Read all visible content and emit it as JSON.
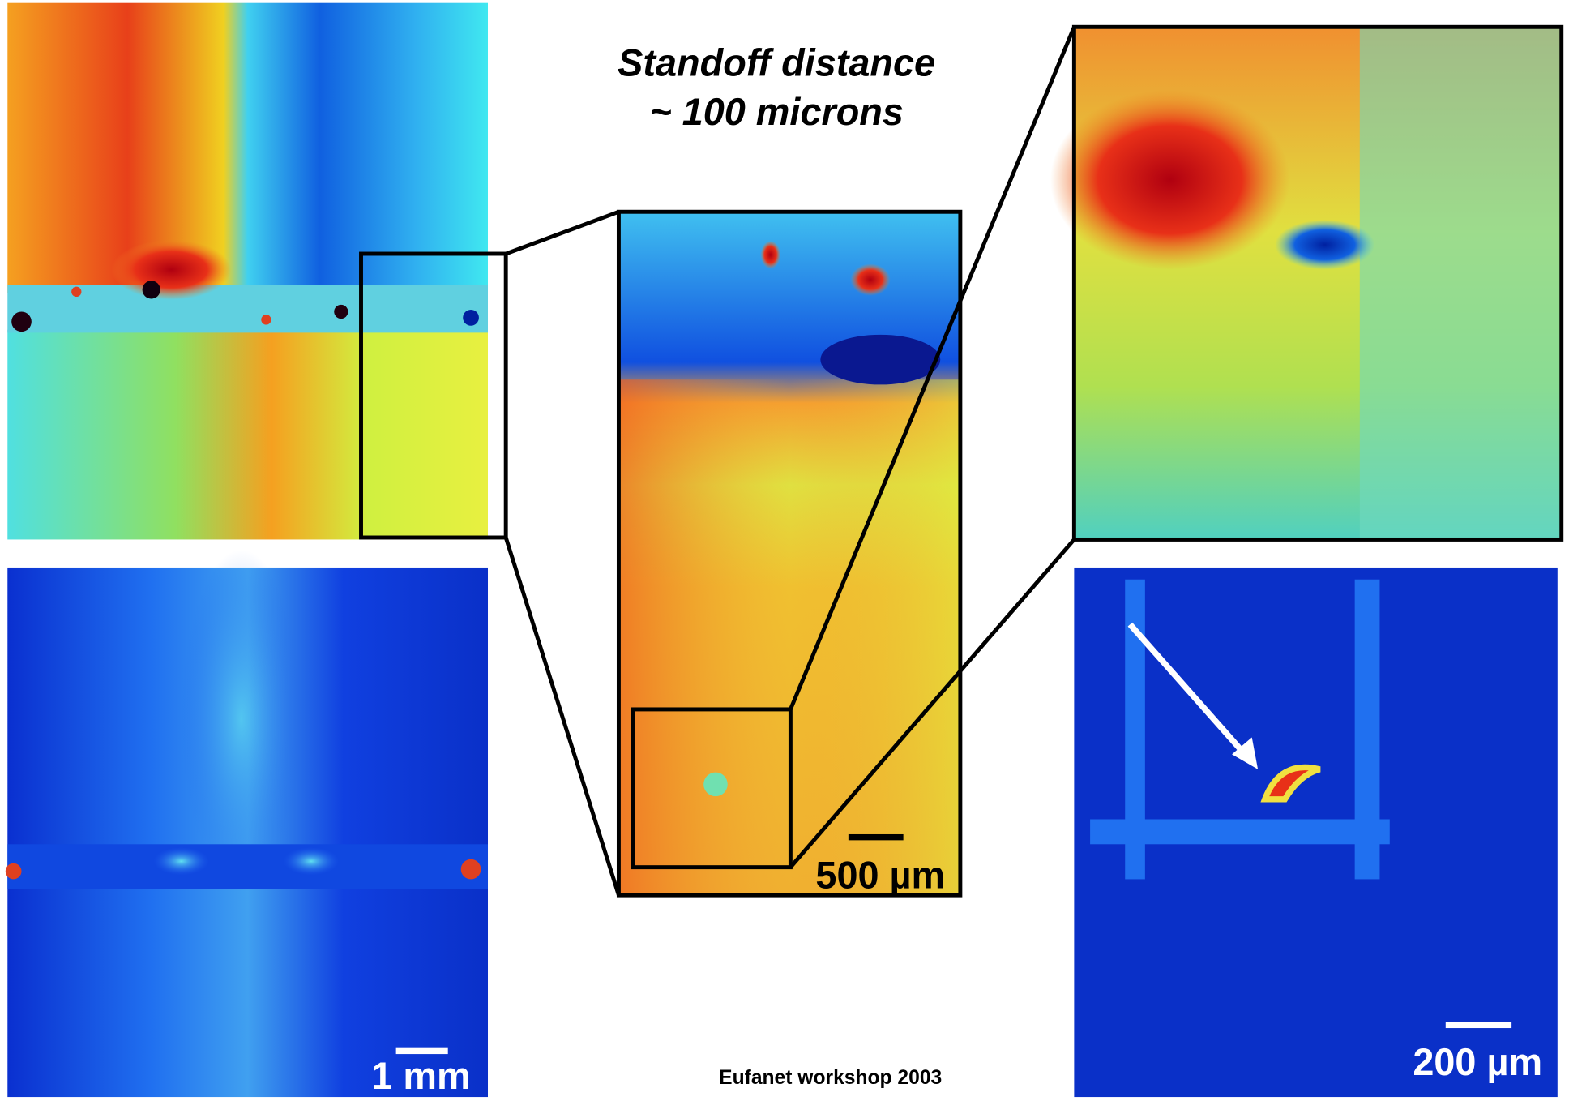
{
  "title": {
    "line1": "Standoff distance",
    "line2": "~ 100 microns"
  },
  "panels": [
    {
      "scale_label": "1 mm"
    },
    {
      "scale_label": "500 µm"
    },
    {
      "scale_label": "200 µm"
    }
  ],
  "footer": "Eufanet workshop 2003"
}
